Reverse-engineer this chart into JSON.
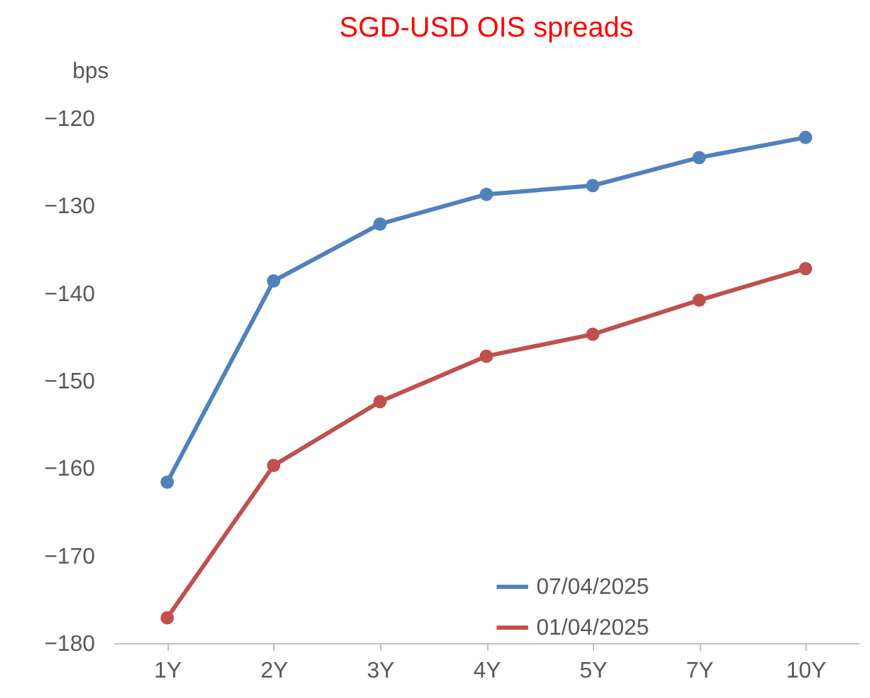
{
  "chart_data": {
    "type": "line",
    "title": "SGD-USD OIS spreads",
    "ylabel": "bps",
    "categories": [
      "1Y",
      "2Y",
      "3Y",
      "4Y",
      "5Y",
      "7Y",
      "10Y"
    ],
    "series": [
      {
        "name": "07/04/2025",
        "color": "#4f81bd",
        "values": [
          -161.6,
          -138.6,
          -132.1,
          -128.7,
          -127.7,
          -124.5,
          -122.2
        ]
      },
      {
        "name": "01/04/2025",
        "color": "#c0504d",
        "values": [
          -177.1,
          -159.7,
          -152.4,
          -147.2,
          -144.7,
          -140.8,
          -137.2
        ]
      }
    ],
    "ylim": [
      -180,
      -120
    ],
    "yticks": [
      -180,
      -170,
      -160,
      -150,
      -140,
      -130,
      -120
    ],
    "grid": false,
    "legend": "bottom right",
    "marker": "circle",
    "line_style": "solid"
  }
}
